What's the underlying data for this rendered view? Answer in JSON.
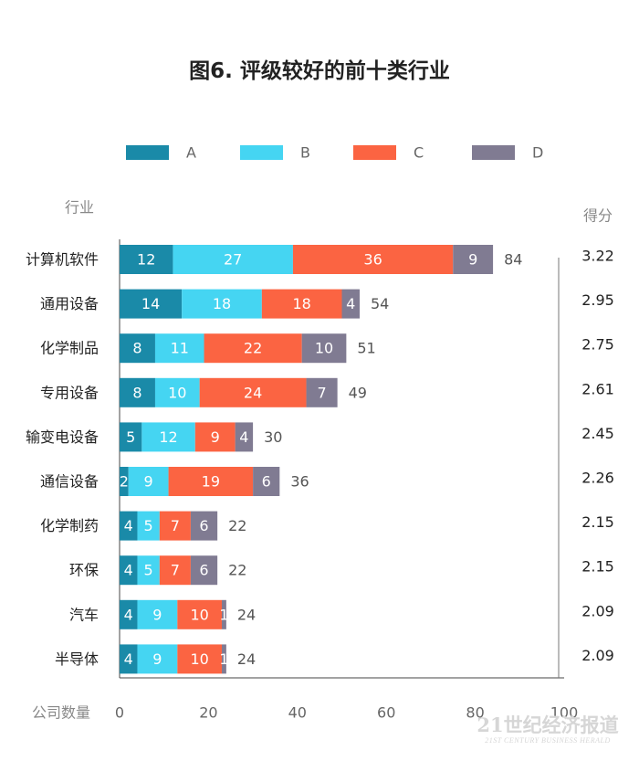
{
  "chart_data": {
    "type": "bar",
    "orientation": "horizontal",
    "stacked": true,
    "title": "图6. 评级较好的前十类行业",
    "category_header": "行业",
    "score_header": "得分",
    "xlabel": "公司数量",
    "xlim": [
      0,
      100
    ],
    "x_ticks": [
      0,
      20,
      40,
      60,
      80,
      100
    ],
    "legend_position": "top",
    "categories": [
      "计算机软件",
      "通用设备",
      "化学制品",
      "专用设备",
      "输变电设备",
      "通信设备",
      "化学制药",
      "环保",
      "汽车",
      "半导体"
    ],
    "series": [
      {
        "name": "A",
        "color": "#1a8aa8",
        "values": [
          12,
          14,
          8,
          8,
          5,
          2,
          4,
          4,
          4,
          4
        ]
      },
      {
        "name": "B",
        "color": "#45d5f2",
        "values": [
          27,
          18,
          11,
          10,
          12,
          9,
          5,
          5,
          9,
          9
        ]
      },
      {
        "name": "C",
        "color": "#fb6442",
        "values": [
          36,
          18,
          22,
          24,
          9,
          19,
          7,
          7,
          10,
          10
        ]
      },
      {
        "name": "D",
        "color": "#807b92",
        "values": [
          9,
          4,
          10,
          7,
          4,
          6,
          6,
          6,
          1,
          1
        ]
      }
    ],
    "totals": [
      84,
      54,
      51,
      49,
      30,
      36,
      22,
      22,
      24,
      24
    ],
    "scores": [
      "3.22",
      "2.95",
      "2.75",
      "2.61",
      "2.45",
      "2.26",
      "2.15",
      "2.15",
      "2.09",
      "2.09"
    ]
  },
  "watermark": {
    "main": "21世纪经济报道",
    "sub": "21ST CENTURY BUSINESS HERALD"
  }
}
